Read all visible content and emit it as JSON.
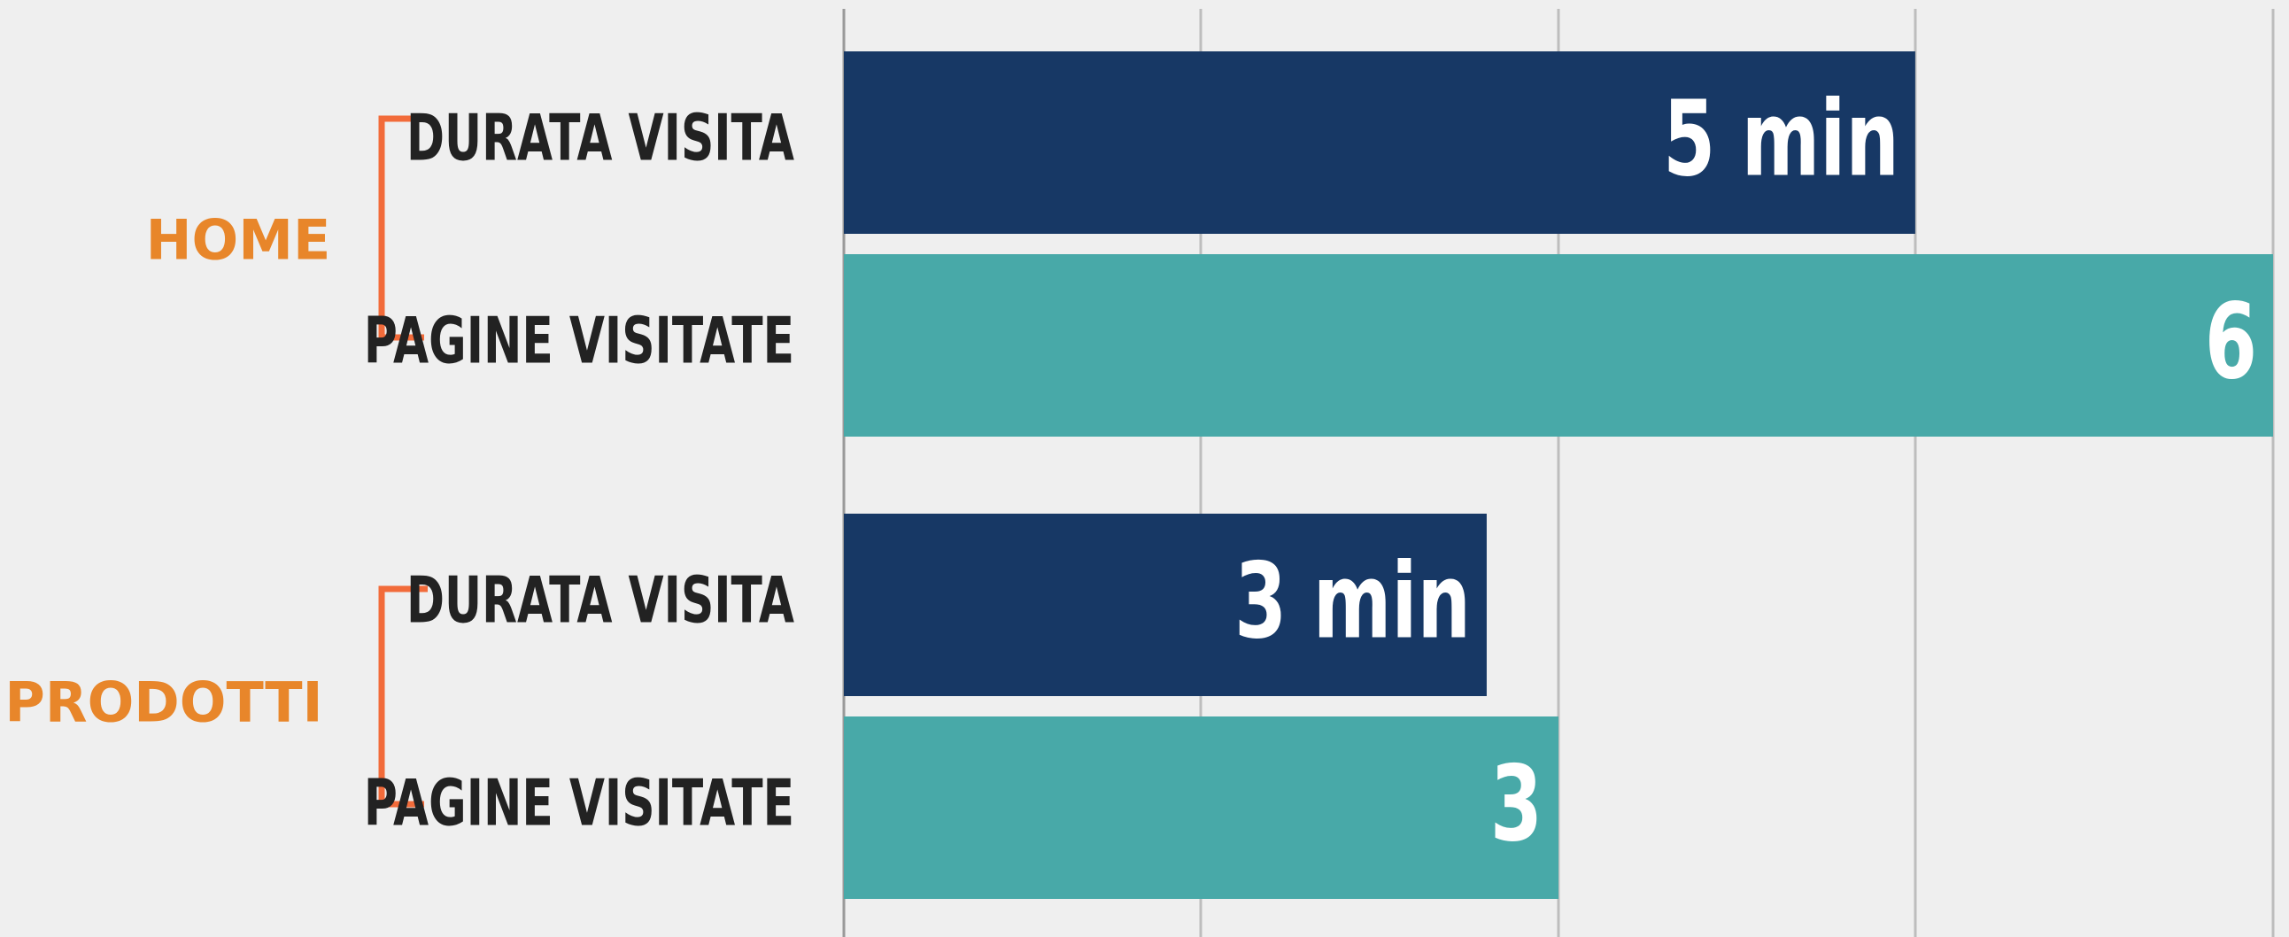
{
  "chart_data": {
    "type": "bar",
    "orientation": "horizontal",
    "categories": [
      "HOME",
      "PRODOTTI"
    ],
    "series": [
      {
        "name": "DURATA VISITA",
        "color": "#173865",
        "values": [
          5,
          3
        ],
        "value_labels": [
          "5 min",
          "3 min"
        ],
        "xlim": [
          0,
          6.67
        ]
      },
      {
        "name": "PAGINE VISITATE",
        "color": "#48a9a8",
        "values": [
          6,
          3
        ],
        "xlim": [
          0,
          6
        ]
      }
    ]
  }
}
